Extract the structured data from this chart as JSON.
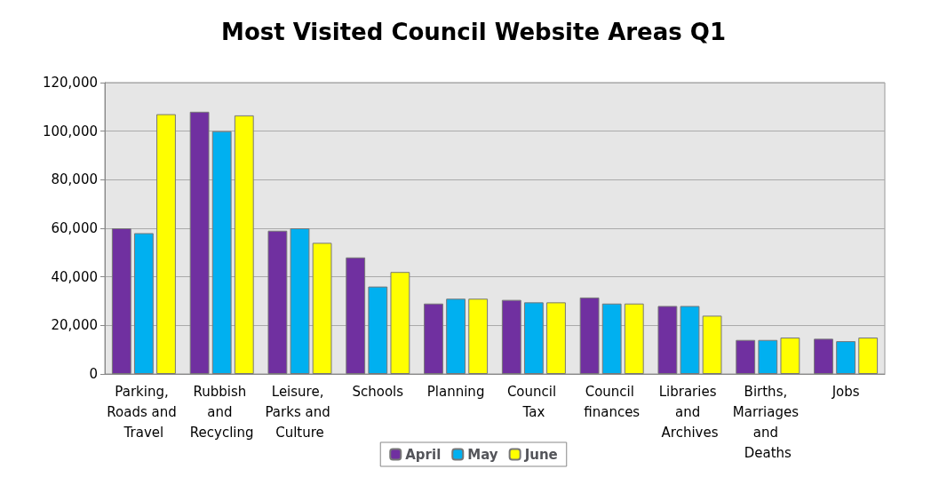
{
  "chart_data": {
    "type": "bar",
    "title": "Most Visited Council Website Areas Q1",
    "categories": [
      "Parking, Roads and Travel",
      "Rubbish and Recycling",
      "Leisure, Parks and Culture",
      "Schools",
      "Planning",
      "Council Tax",
      "Council finances",
      "Libraries and Archives",
      "Births, Marriages and Deaths",
      "Jobs"
    ],
    "series": [
      {
        "name": "April",
        "color": "#7030a0",
        "values": [
          60000,
          108000,
          59000,
          48000,
          29000,
          30500,
          31500,
          28000,
          14000,
          14500
        ]
      },
      {
        "name": "May",
        "color": "#00b0f0",
        "values": [
          58000,
          100000,
          60000,
          36000,
          31000,
          29500,
          29000,
          28000,
          14000,
          13500
        ]
      },
      {
        "name": "June",
        "color": "#ffff00",
        "values": [
          107000,
          106500,
          54000,
          42000,
          31000,
          29500,
          29000,
          24000,
          15000,
          15000
        ]
      }
    ],
    "ylim": [
      0,
      120000
    ],
    "yticks": [
      0,
      {
        "value": 20000,
        "label": "20,000"
      },
      {
        "value": 40000,
        "label": "40,000"
      },
      {
        "value": 60000,
        "label": "60,000"
      },
      {
        "value": 80000,
        "label": "80,000"
      },
      {
        "value": 100000,
        "label": "100,000"
      },
      {
        "value": 120000,
        "label": "120,000"
      }
    ],
    "grid": "y",
    "legend": "bottom"
  }
}
